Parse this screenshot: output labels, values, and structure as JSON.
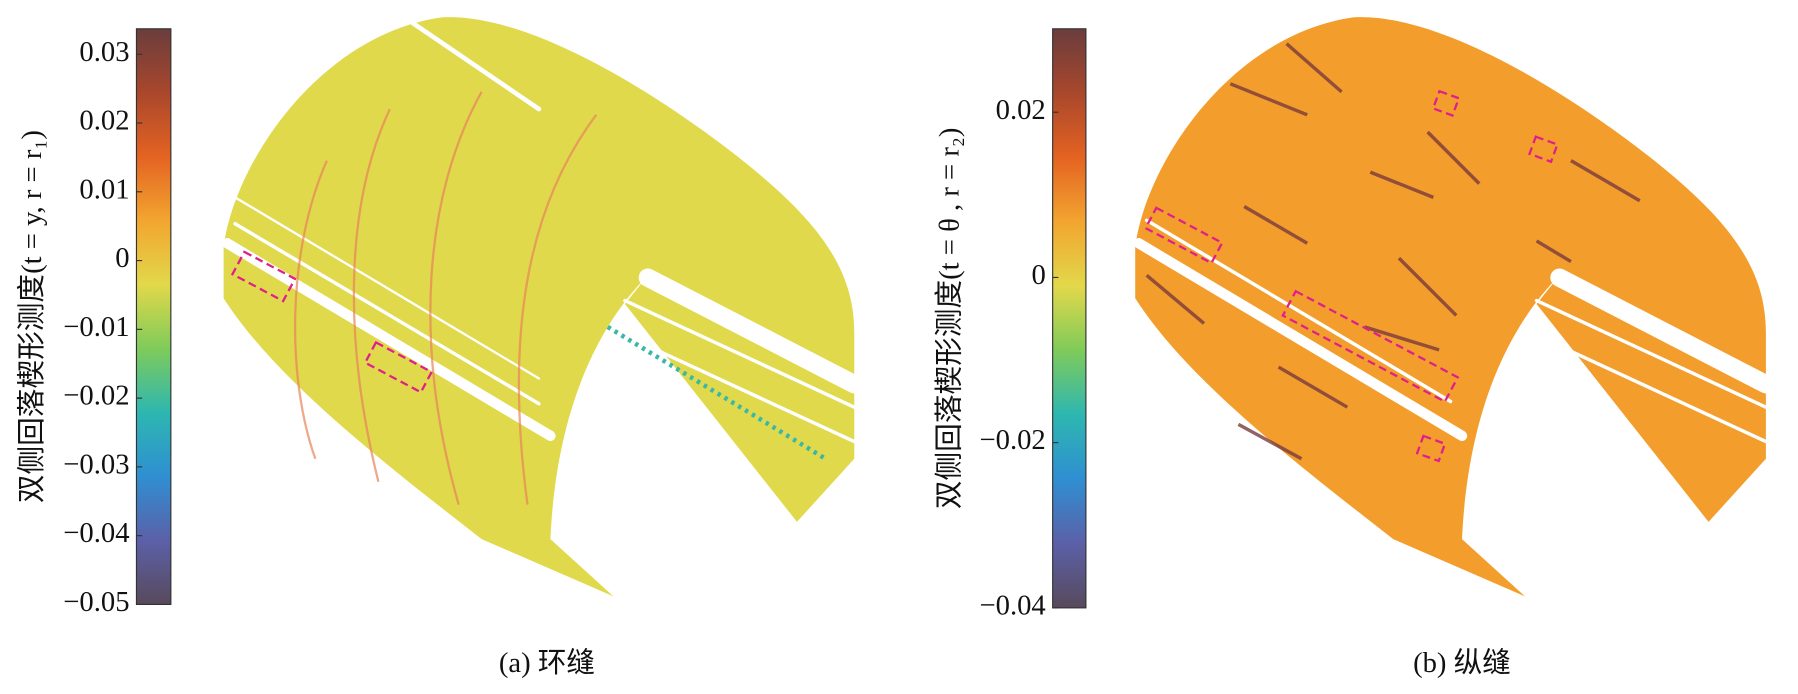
{
  "chart_data": [
    {
      "type": "colorbar",
      "ylabel": "双侧回落楔形测度(t = y, r = r₁)",
      "caption": "(a) 环缝",
      "ylim": [
        -0.05,
        0.0337
      ],
      "yticks": [
        0.03,
        0.02,
        0.01,
        0,
        {
          "value": -0.01,
          "label": "−0.01"
        },
        {
          "value": -0.02,
          "label": "−0.02"
        },
        {
          "value": -0.03,
          "label": "−0.03"
        },
        {
          "value": -0.04,
          "label": "−0.04"
        },
        {
          "value": -0.05,
          "label": "−0.05"
        }
      ],
      "colors": [
        "#584a5c",
        "#5b60a8",
        "#2f8fd2",
        "#2db7b0",
        "#7fcb5a",
        "#e2d84a",
        "#f2a530",
        "#e46322",
        "#a9472c",
        "#6a3d3d"
      ]
    },
    {
      "type": "colorbar",
      "ylabel": "双侧回落楔形测度(t = θ , r = r₂)",
      "caption": "(b) 纵缝",
      "ylim": [
        -0.04,
        0.0301
      ],
      "yticks": [
        0.02,
        0,
        {
          "value": -0.02,
          "label": "−0.02"
        },
        {
          "value": -0.04,
          "label": "−0.04"
        }
      ],
      "colors": [
        "#584a5c",
        "#5b60a8",
        "#2f8fd2",
        "#2db7b0",
        "#7fcb5a",
        "#e2d84a",
        "#f2a530",
        "#e46322",
        "#a9472c",
        "#6a3d3d"
      ]
    }
  ]
}
